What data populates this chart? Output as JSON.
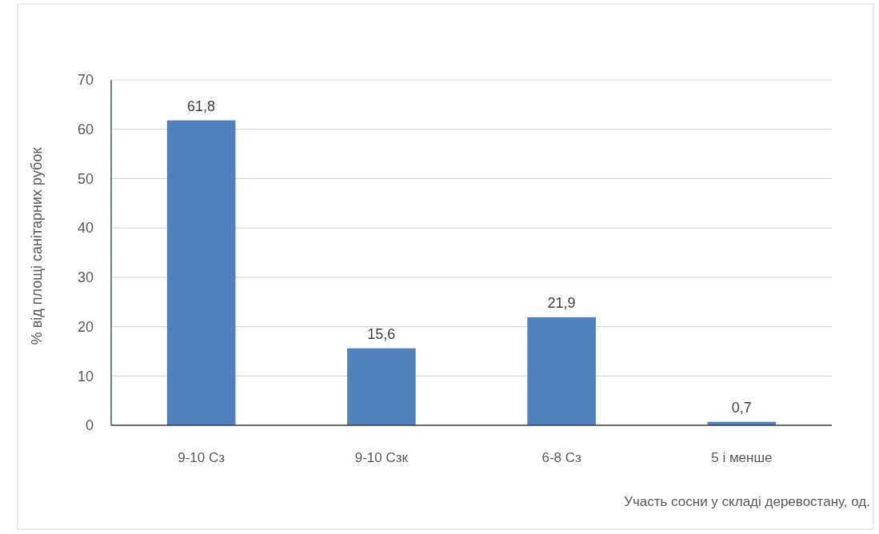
{
  "chart_data": {
    "type": "bar",
    "ylabel": "% від площі санітарних рубок",
    "xlabel": "Участь сосни у складі деревостану, од.",
    "categories": [
      "9-10 Сз",
      "9-10 Сзк",
      "6-8 Сз",
      "5 і менше"
    ],
    "values": [
      61.8,
      15.6,
      21.9,
      0.7
    ],
    "value_labels": [
      "61,8",
      "15,6",
      "21,9",
      "0,7"
    ],
    "color": "#4f81bd",
    "ylim": [
      0,
      70
    ],
    "yticks": [
      0,
      10,
      20,
      30,
      40,
      50,
      60,
      70
    ],
    "grid": "y"
  }
}
